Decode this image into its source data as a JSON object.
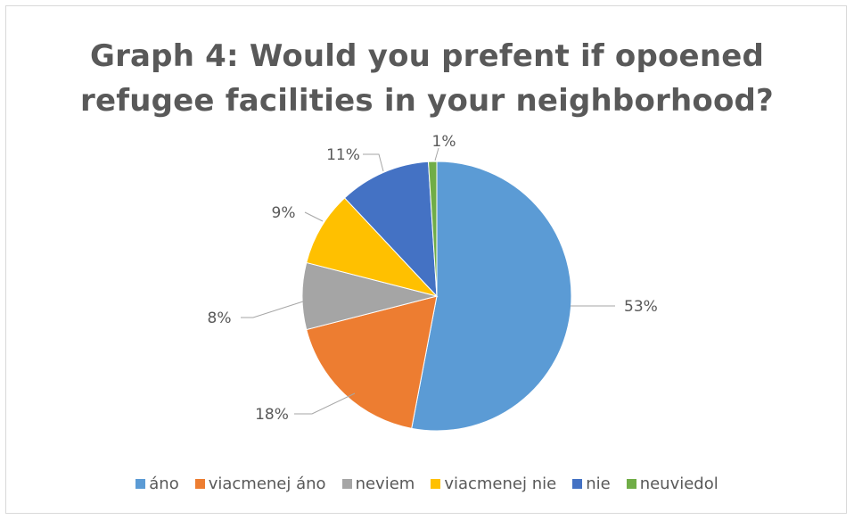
{
  "chart_data": {
    "type": "pie",
    "title_lines": [
      "Graph 4: Would you prefent if opoened",
      "refugee facilities in your neighborhood?"
    ],
    "slices": [
      {
        "name": "áno",
        "value": 53,
        "label": "53%",
        "color": "#5b9bd5"
      },
      {
        "name": "viacmenej áno",
        "value": 18,
        "label": "18%",
        "color": "#ed7d31"
      },
      {
        "name": "neviem",
        "value": 8,
        "label": "8%",
        "color": "#a5a5a5"
      },
      {
        "name": "viacmenej nie",
        "value": 9,
        "label": "9%",
        "color": "#ffc000"
      },
      {
        "name": "nie",
        "value": 11,
        "label": "11%",
        "color": "#4472c4"
      },
      {
        "name": "neuviedol",
        "value": 1,
        "label": "1%",
        "color": "#70ad47"
      }
    ],
    "legend_position": "bottom"
  }
}
